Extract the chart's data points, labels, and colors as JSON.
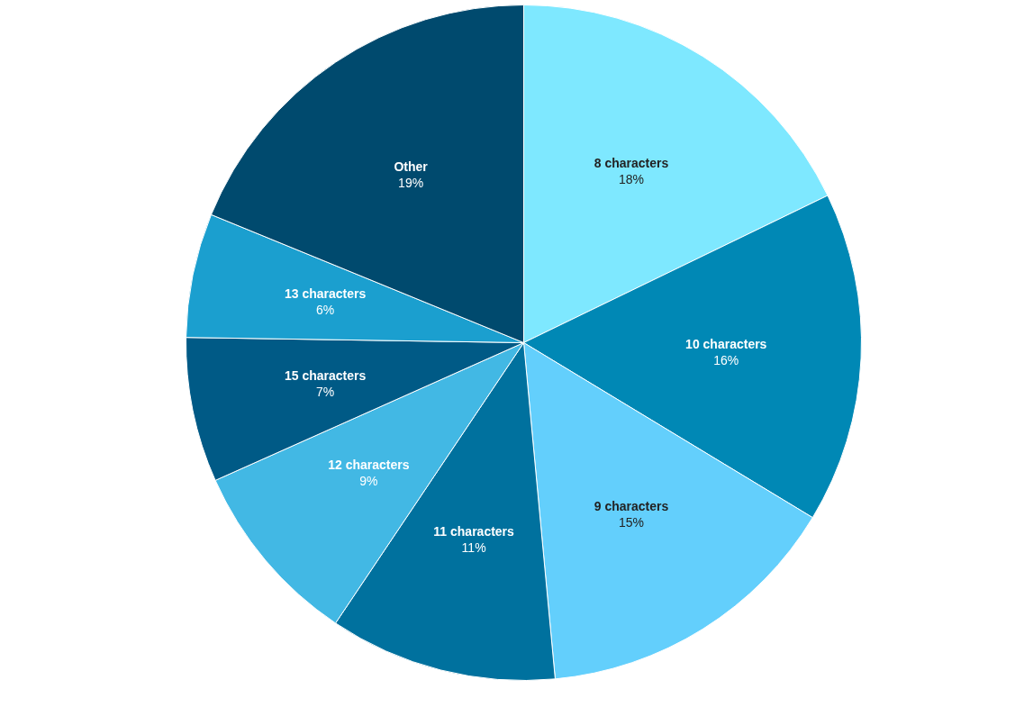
{
  "chart_data": {
    "type": "pie",
    "categories": [
      "8 characters",
      "10 characters",
      "9 characters",
      "11 characters",
      "12 characters",
      "15 characters",
      "13 characters",
      "Other"
    ],
    "values": [
      18,
      16,
      15,
      11,
      9,
      7,
      6,
      19
    ],
    "value_labels": [
      "18%",
      "16%",
      "15%",
      "11%",
      "9%",
      "7%",
      "6%",
      "19%"
    ],
    "colors": [
      "#7ee8ff",
      "#0088b5",
      "#63cffc",
      "#00719e",
      "#42b8e4",
      "#005a86",
      "#1b9fcf",
      "#004a6e"
    ]
  }
}
